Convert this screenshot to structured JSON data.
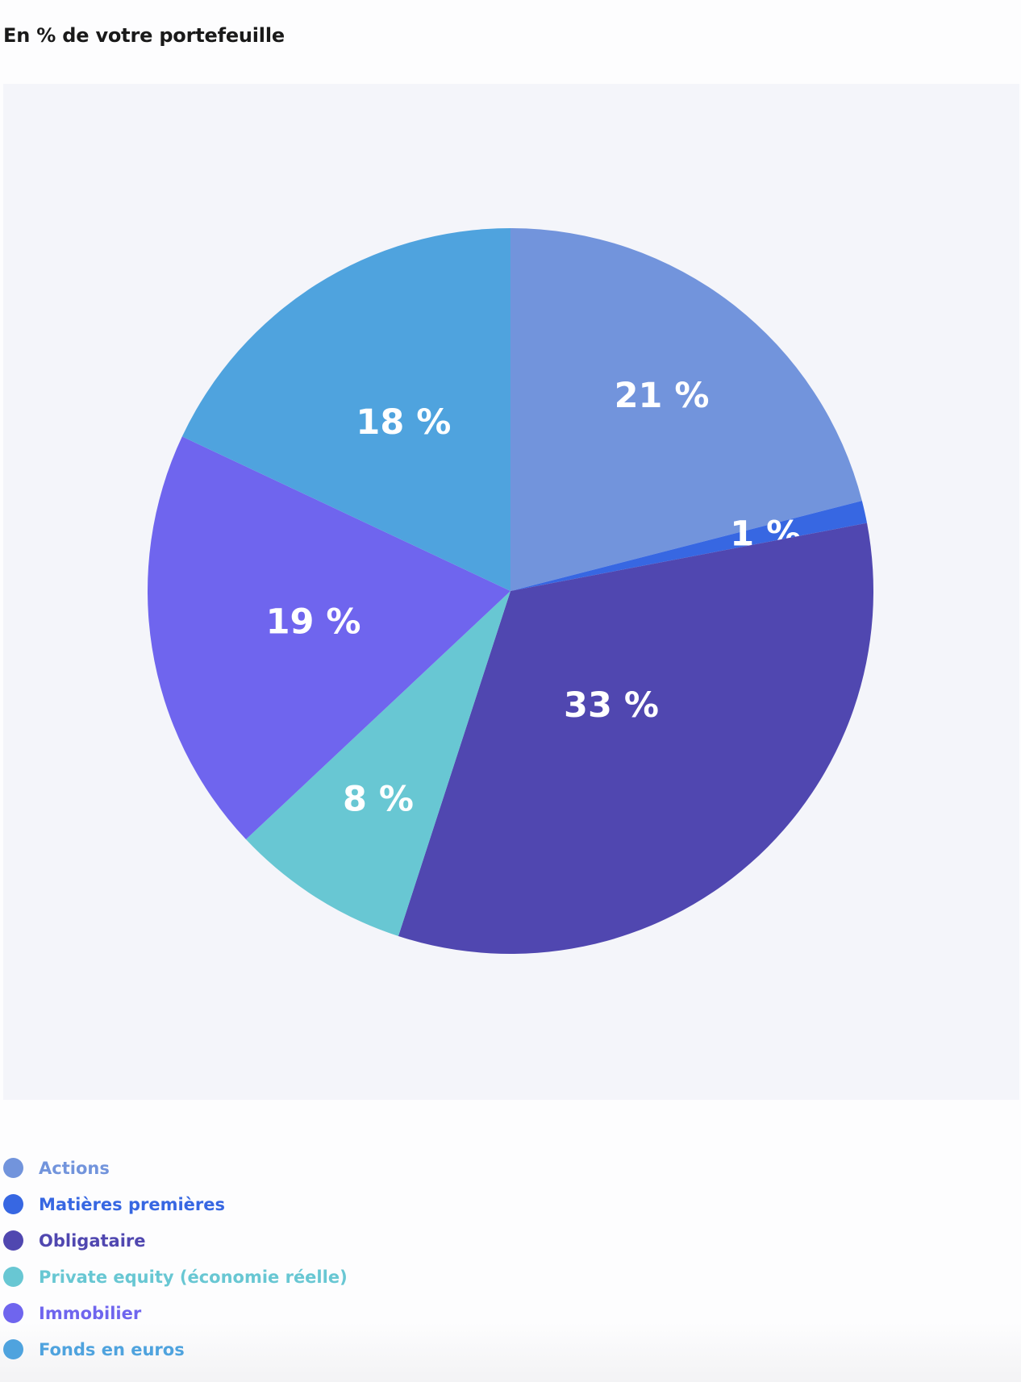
{
  "title": "En % de votre portefeuille",
  "chart_data": {
    "type": "pie",
    "title": "En % de votre portefeuille",
    "slices": [
      {
        "name": "Actions",
        "value": 21,
        "label": "21 %",
        "color": "#7294dc"
      },
      {
        "name": "Matières premières",
        "value": 1,
        "label": "1 %",
        "color": "#3767e2"
      },
      {
        "name": "Obligataire",
        "value": 33,
        "label": "33 %",
        "color": "#5047b0"
      },
      {
        "name": "Private equity (économie réelle)",
        "value": 8,
        "label": "8 %",
        "color": "#68c7d3"
      },
      {
        "name": "Immobilier",
        "value": 19,
        "label": "19 %",
        "color": "#6f65ee"
      },
      {
        "name": "Fonds en euros",
        "value": 18,
        "label": "18 %",
        "color": "#4fa3de"
      }
    ],
    "start_angle": "top",
    "direction": "clockwise",
    "legend_position": "bottom-left"
  }
}
